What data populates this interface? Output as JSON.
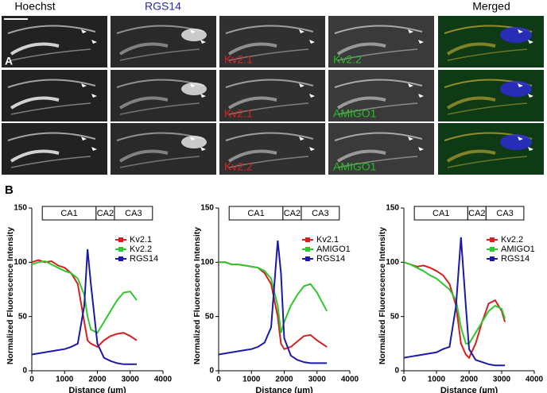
{
  "figure": {
    "panel_a_label": "A",
    "panel_b_label": "B",
    "headers": {
      "hoechst": "Hoechst",
      "rgs14": "RGS14",
      "merged": "Merged"
    },
    "rows": [
      {
        "red": "Kv2.1",
        "green": "Kv2.2"
      },
      {
        "red": "Kv2.1",
        "green": "AMIGO1"
      },
      {
        "red": "Kv2.2",
        "green": "AMIGO1"
      }
    ]
  },
  "chart_data": [
    {
      "type": "line",
      "x_label": "Distance (µm)",
      "y_label": "Normalized Fluorescence Intensity",
      "regions": [
        "CA1",
        "CA2",
        "CA3"
      ],
      "legend": "upper right",
      "xlim": [
        0,
        4000
      ],
      "ylim": [
        0,
        150
      ],
      "xticks": [
        0,
        1000,
        2000,
        3000,
        4000
      ],
      "yticks": [
        0,
        50,
        100,
        150
      ],
      "x": [
        0,
        200,
        400,
        600,
        800,
        1000,
        1200,
        1400,
        1600,
        1700,
        1800,
        2000,
        2200,
        2400,
        2600,
        2800,
        3000,
        3200
      ],
      "series": [
        {
          "name": "Kv2.1",
          "color": "#d42020",
          "values": [
            100,
            102,
            100,
            101,
            97,
            95,
            90,
            80,
            45,
            28,
            25,
            22,
            28,
            32,
            34,
            35,
            32,
            28
          ]
        },
        {
          "name": "Kv2.2",
          "color": "#2ec82e",
          "values": [
            98,
            100,
            101,
            98,
            95,
            92,
            90,
            85,
            70,
            50,
            38,
            35,
            45,
            55,
            65,
            72,
            73,
            65
          ]
        },
        {
          "name": "RGS14",
          "color": "#1a1aa8",
          "values": [
            15,
            16,
            17,
            18,
            19,
            20,
            22,
            25,
            60,
            112,
            80,
            25,
            12,
            9,
            7,
            6,
            6,
            6
          ]
        }
      ]
    },
    {
      "type": "line",
      "x_label": "Distance (µm)",
      "y_label": "Normalized Fluorescence Intensity",
      "regions": [
        "CA1",
        "CA2",
        "CA3"
      ],
      "legend": "upper right",
      "xlim": [
        0,
        4000
      ],
      "ylim": [
        0,
        150
      ],
      "xticks": [
        0,
        1000,
        2000,
        3000,
        4000
      ],
      "yticks": [
        0,
        50,
        100,
        150
      ],
      "x": [
        0,
        200,
        400,
        600,
        800,
        1000,
        1200,
        1400,
        1600,
        1800,
        1900,
        2000,
        2200,
        2400,
        2600,
        2800,
        3000,
        3300
      ],
      "series": [
        {
          "name": "Kv2.1",
          "color": "#d42020",
          "values": [
            100,
            100,
            98,
            98,
            97,
            96,
            95,
            90,
            80,
            50,
            25,
            20,
            22,
            27,
            32,
            33,
            28,
            22
          ]
        },
        {
          "name": "AMIGO1",
          "color": "#2ec82e",
          "values": [
            100,
            100,
            98,
            98,
            97,
            96,
            95,
            92,
            85,
            60,
            35,
            45,
            60,
            70,
            78,
            80,
            72,
            55
          ]
        },
        {
          "name": "RGS14",
          "color": "#1a1aa8",
          "values": [
            15,
            16,
            17,
            18,
            19,
            20,
            22,
            26,
            40,
            120,
            90,
            30,
            14,
            10,
            8,
            7,
            7,
            7
          ]
        }
      ]
    },
    {
      "type": "line",
      "x_label": "Distance (µm)",
      "y_label": "Normalized Fluorescence Intensity",
      "regions": [
        "CA1",
        "CA2",
        "CA3"
      ],
      "legend": "upper right",
      "xlim": [
        0,
        4000
      ],
      "ylim": [
        0,
        150
      ],
      "xticks": [
        0,
        1000,
        2000,
        3000,
        4000
      ],
      "yticks": [
        0,
        50,
        100,
        150
      ],
      "x": [
        0,
        200,
        400,
        600,
        800,
        1000,
        1200,
        1400,
        1600,
        1750,
        1900,
        2000,
        2200,
        2400,
        2600,
        2800,
        3000,
        3100
      ],
      "series": [
        {
          "name": "Kv2.2",
          "color": "#d42020",
          "values": [
            100,
            98,
            96,
            97,
            95,
            92,
            88,
            80,
            60,
            25,
            15,
            12,
            25,
            45,
            62,
            65,
            55,
            45
          ]
        },
        {
          "name": "AMIGO1",
          "color": "#2ec82e",
          "values": [
            100,
            98,
            95,
            92,
            88,
            85,
            80,
            75,
            65,
            40,
            25,
            25,
            35,
            45,
            55,
            60,
            57,
            48
          ]
        },
        {
          "name": "RGS14",
          "color": "#1a1aa8",
          "values": [
            12,
            13,
            14,
            15,
            16,
            17,
            20,
            22,
            60,
            123,
            60,
            20,
            10,
            8,
            6,
            5,
            5,
            5
          ]
        }
      ]
    }
  ]
}
